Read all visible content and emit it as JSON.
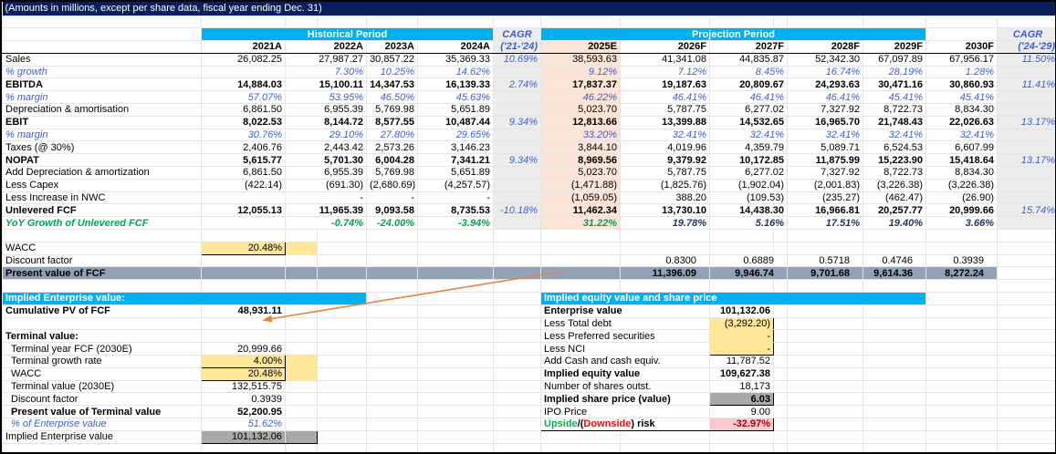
{
  "title": "(Amounts in millions, except per share data, fiscal year ending Dec. 31)",
  "left": {
    "band_label": "Historical Period",
    "cagr_label": "CAGR",
    "cagr_range": "('21-'24)",
    "years": [
      "2021A",
      "2022A",
      "2023A",
      "2024A"
    ]
  },
  "right": {
    "band_label": "Projection Period",
    "cagr_label": "CAGR",
    "cagr_range": "('24-'29)",
    "years": [
      "2025E",
      "2026F",
      "2027F",
      "2028F",
      "2029F",
      "2030F"
    ]
  },
  "rows": [
    {
      "k": "sales",
      "label": "Sales",
      "s": "plain",
      "hist": [
        "26,082.25",
        "27,987.27",
        "30,857.22",
        "35,369.33"
      ],
      "hc": "10.69%",
      "proj": [
        "38,593.63",
        "41,341.08",
        "44,835.87",
        "52,342.30",
        "67,097.89",
        "67,956.17"
      ],
      "pc": "11.50%"
    },
    {
      "k": "sales-growth",
      "label": "% growth",
      "s": "pct",
      "hist": [
        "",
        "7.30%",
        "10.25%",
        "14.62%"
      ],
      "hc": "",
      "proj": [
        "9.12%",
        "7.12%",
        "8.45%",
        "16.74%",
        "28.19%",
        "1.28%"
      ],
      "pc": ""
    },
    {
      "k": "ebitda",
      "label": "EBITDA",
      "s": "total",
      "hist": [
        "14,884.03",
        "15,100.11",
        "14,347.53",
        "16,139.33"
      ],
      "hc": "2.74%",
      "proj": [
        "17,837.37",
        "19,187.63",
        "20,809.67",
        "24,293.63",
        "30,471.16",
        "30,860.93"
      ],
      "pc": "11.41%"
    },
    {
      "k": "ebitda-margin",
      "label": "% margin",
      "s": "pct",
      "hist": [
        "57.07%",
        "53.95%",
        "46.50%",
        "45.63%"
      ],
      "hc": "",
      "proj": [
        "46.22%",
        "46.41%",
        "46.41%",
        "46.41%",
        "45.41%",
        "45.41%"
      ],
      "pc": ""
    },
    {
      "k": "da",
      "label": "Depreciation & amortisation",
      "s": "plain",
      "hist": [
        "6,861.50",
        "6,955.39",
        "5,769.98",
        "5,651.89"
      ],
      "hc": "",
      "proj": [
        "5,023.70",
        "5,787.75",
        "6,277.02",
        "7,327.92",
        "8,722.73",
        "8,834.30"
      ],
      "pc": ""
    },
    {
      "k": "ebit",
      "label": "EBIT",
      "s": "total",
      "hist": [
        "8,022.53",
        "8,144.72",
        "8,577.55",
        "10,487.44"
      ],
      "hc": "9.34%",
      "proj": [
        "12,813.66",
        "13,399.88",
        "14,532.65",
        "16,965.70",
        "21,748.43",
        "22,026.63"
      ],
      "pc": "13.17%"
    },
    {
      "k": "ebit-margin",
      "label": "% margin",
      "s": "pct",
      "hist": [
        "30.76%",
        "29.10%",
        "27.80%",
        "29.65%"
      ],
      "hc": "",
      "proj": [
        "33.20%",
        "32.41%",
        "32.41%",
        "32.41%",
        "32.41%",
        "32.41%"
      ],
      "pc": ""
    },
    {
      "k": "taxes",
      "label": "Taxes (@ 30%)",
      "s": "plain",
      "hist": [
        "2,406.76",
        "2,443.42",
        "2,573.26",
        "3,146.23"
      ],
      "hc": "",
      "proj": [
        "3,844.10",
        "4,019.96",
        "4,359.79",
        "5,089.71",
        "6,524.53",
        "6,607.99"
      ],
      "pc": ""
    },
    {
      "k": "nopat",
      "label": "NOPAT",
      "s": "total",
      "hist": [
        "5,615.77",
        "5,701.30",
        "6,004.28",
        "7,341.21"
      ],
      "hc": "9.34%",
      "proj": [
        "8,969.56",
        "9,379.92",
        "10,172.85",
        "11,875.99",
        "15,223.90",
        "15,418.64"
      ],
      "pc": "13.17%"
    },
    {
      "k": "add-da",
      "label": "Add Depreciation & amortization",
      "s": "plain",
      "hist": [
        "6,861.50",
        "6,955.39",
        "5,769.98",
        "5,651.89"
      ],
      "hc": "",
      "proj": [
        "5,023.70",
        "5,787.75",
        "6,277.02",
        "7,327.92",
        "8,722.73",
        "8,834.30"
      ],
      "pc": ""
    },
    {
      "k": "less-capex",
      "label": "Less Capex",
      "s": "plain",
      "hist": [
        "(422.14)",
        "(691.30)",
        "(2,680.69)",
        "(4,257.57)"
      ],
      "hc": "",
      "proj": [
        "(1,471.88)",
        "(1,825.76)",
        "(1,902.04)",
        "(2,001.83)",
        "(3,226.38)",
        "(3,226.38)"
      ],
      "pc": ""
    },
    {
      "k": "less-nwc",
      "label": "Less Increase in NWC",
      "s": "plain",
      "hist": [
        "",
        "-",
        "-",
        "-"
      ],
      "hc": "",
      "proj": [
        "(1,059.05)",
        "388.20",
        "(109.53)",
        "(235.27)",
        "(462.47)",
        "(26.90)"
      ],
      "pc": ""
    },
    {
      "k": "ufcf",
      "label": "Unlevered FCF",
      "s": "total",
      "hist": [
        "12,055.13",
        "11,965.39",
        "9,093.58",
        "8,735.53"
      ],
      "hc": "-10.18%",
      "proj": [
        "11,462.34",
        "13,730.10",
        "14,438.30",
        "16,966.81",
        "20,257.77",
        "20,999.66"
      ],
      "pc": "15.74%"
    },
    {
      "k": "ufcf-growth",
      "label": "YoY Growth of Unlevered FCF",
      "s": "yoy",
      "hist": [
        "",
        "-0.74%",
        "-24.00%",
        "-3.94%"
      ],
      "hc": "",
      "proj": [
        "31.22%",
        "19.78%",
        "5.16%",
        "17.51%",
        "19.40%",
        "3.66%"
      ],
      "pc": ""
    }
  ],
  "wacc_row": {
    "label": "WACC",
    "value": "20.48%"
  },
  "discount_row": {
    "label": "Discount factor",
    "values": [
      "0.8300",
      "0.6889",
      "0.5718",
      "0.4746",
      "0.3939"
    ]
  },
  "pv_row": {
    "label": "Present value of FCF",
    "values": [
      "11,396.09",
      "9,946.74",
      "9,701.68",
      "9,614.36",
      "8,272.24"
    ]
  },
  "ev_block": {
    "header": "Implied Enterprise value:",
    "rows": [
      {
        "k": "cumulative-pv",
        "label": "Cumulative PV of FCF",
        "value": "48,931.11",
        "bold": true
      },
      {
        "k": "blank",
        "blank": true
      },
      {
        "k": "terminal-header",
        "label": "Terminal value:",
        "bold": true
      },
      {
        "k": "terminal-fcf",
        "label": "Terminal year FCF (2030E)",
        "value": "20,999.66",
        "ind": true
      },
      {
        "k": "terminal-growth",
        "label": "Terminal growth rate",
        "value": "4.00%",
        "ind": true,
        "input": true
      },
      {
        "k": "terminal-wacc",
        "label": "WACC",
        "value": "20.48%",
        "ind": true,
        "input": true
      },
      {
        "k": "terminal-value",
        "label": "Terminal value (2030E)",
        "value": "132,515.75",
        "ind": true,
        "topline": true
      },
      {
        "k": "terminal-discount",
        "label": "Discount factor",
        "value": "0.3939",
        "ind": true
      },
      {
        "k": "pv-terminal",
        "label": "Present value of Terminal value",
        "value": "52,200.95",
        "ind": true,
        "bold": true,
        "topline": true
      },
      {
        "k": "pct-of-ev",
        "label": "% of Enterprise value",
        "value": "51.62%",
        "ind": true,
        "pct": true
      },
      {
        "k": "implied-ev",
        "label": "Implied Enterprise value",
        "value": "101,132.06",
        "graybox": true,
        "topline": true
      }
    ]
  },
  "equity_block": {
    "header": "Implied equity value and share price",
    "rows": [
      {
        "k": "enterprise-value",
        "label": "Enterprise value",
        "value": "101,132.06",
        "bold": true
      },
      {
        "k": "less-debt",
        "label": "Less Total debt",
        "value": "(3,292.20)",
        "yellow": "top"
      },
      {
        "k": "less-preferred",
        "label": "Less Preferred securities",
        "value": "-",
        "yellow": "mid"
      },
      {
        "k": "less-nci",
        "label": "Less NCI",
        "value": "-",
        "yellow": "bot"
      },
      {
        "k": "add-cash",
        "label": "Add Cash and cash equiv.",
        "value": "11,787.52"
      },
      {
        "k": "implied-equity",
        "label": "Implied equity value",
        "value": "109,627.38",
        "bold": true,
        "topline": true
      },
      {
        "k": "shares-outst",
        "label": "Number of shares outst.",
        "value": "18,173"
      },
      {
        "k": "implied-share-price",
        "label": "Implied share price (value)",
        "value": "6.03",
        "boldlabel": true,
        "graybox": true,
        "topline": true
      },
      {
        "k": "ipo-price",
        "label": "IPO Price",
        "value": "9.00"
      },
      {
        "k": "upside-risk",
        "parts": [
          "Upside",
          "/(",
          "Downside",
          ") risk"
        ],
        "value": "-32.97%",
        "pink": true,
        "topline": true,
        "bottomline": true
      }
    ]
  },
  "colors": {
    "band_cyan": "#00B0F0",
    "navy_bar": "#0A1F5C",
    "input_yellow": "#FFE699",
    "pv_band": "#91A1B8",
    "result_gray": "#A9A9A9",
    "negative_pink": "#FFC7CE",
    "negative_text": "#9C0006",
    "italic_blue": "#3A5FD0",
    "growth_green": "#00A651",
    "yoy_navy": "#203864",
    "projection_peach": "#FCE4D6",
    "cagr_gray": "#ECECEC",
    "arrow_orange": "#E8823C"
  }
}
